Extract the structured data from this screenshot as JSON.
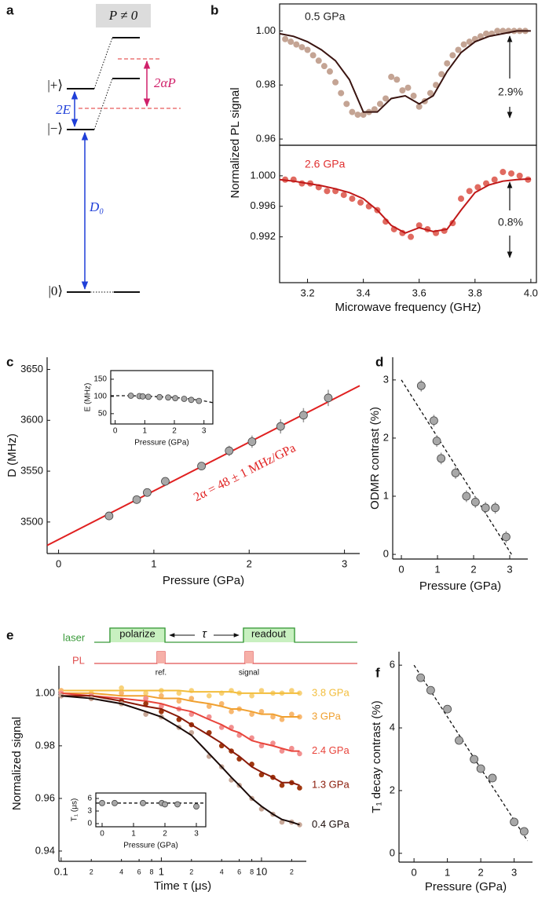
{
  "diagram": {
    "panel_label": "a",
    "condition": "P ≠ 0",
    "plus": "|+⟩",
    "minus": "|−⟩",
    "zero": "|0⟩",
    "splitting": "2E",
    "zero_field": "D₀",
    "shift": "2αP"
  },
  "chart_data": [
    {
      "type": "scatter",
      "panel_label": "b",
      "y_label": "Normalized PL signal",
      "xlim": [
        3.1,
        4.02
      ],
      "ylim": [
        0.9577,
        1.01
      ],
      "yticks": [
        0.96,
        0.98,
        {
          "value": 1,
          "label": "1.00"
        }
      ],
      "annotations": [
        {
          "text": "0.5 GPa",
          "color": "#222222"
        },
        {
          "text": "2.9%",
          "color": "#222222"
        }
      ],
      "series": [
        {
          "style": "markers",
          "color": "#c4a494",
          "x": [
            3.12,
            3.14,
            3.16,
            3.18,
            3.2,
            3.22,
            3.24,
            3.26,
            3.28,
            3.3,
            3.32,
            3.34,
            3.36,
            3.38,
            3.4,
            3.42,
            3.44,
            3.46,
            3.48,
            3.5,
            3.52,
            3.54,
            3.56,
            3.58,
            3.6,
            3.62,
            3.64,
            3.66,
            3.68,
            3.7,
            3.72,
            3.74,
            3.76,
            3.78,
            3.8,
            3.82,
            3.84,
            3.86,
            3.88,
            3.9,
            3.92,
            3.94,
            3.96,
            3.98
          ],
          "values": [
            0.997,
            0.996,
            0.995,
            0.994,
            0.993,
            0.991,
            0.989,
            0.987,
            0.985,
            0.981,
            0.977,
            0.973,
            0.97,
            0.969,
            0.969,
            0.97,
            0.971,
            0.973,
            0.975,
            0.983,
            0.982,
            0.978,
            0.979,
            0.976,
            0.972,
            0.974,
            0.977,
            0.98,
            0.984,
            0.988,
            0.991,
            0.993,
            0.995,
            0.996,
            0.997,
            0.998,
            0.999,
            0.999,
            1,
            1,
            1,
            1,
            1,
            1
          ]
        },
        {
          "style": "line",
          "color": "#3a1410",
          "x": [
            3.1,
            3.15,
            3.2,
            3.25,
            3.3,
            3.35,
            3.4,
            3.45,
            3.5,
            3.55,
            3.6,
            3.65,
            3.7,
            3.75,
            3.8,
            3.85,
            3.9,
            3.95,
            4.0
          ],
          "values": [
            0.999,
            0.998,
            0.996,
            0.993,
            0.989,
            0.982,
            0.97,
            0.97,
            0.975,
            0.976,
            0.973,
            0.976,
            0.985,
            0.992,
            0.996,
            0.998,
            0.999,
            1,
            1
          ]
        }
      ]
    },
    {
      "type": "scatter",
      "x_label": "Microwave frequency (GHz)",
      "xlim": [
        3.1,
        4.02
      ],
      "ylim": [
        0.986,
        1.004
      ],
      "xticks": [
        3.2,
        3.4,
        3.6,
        3.8,
        {
          "value": 4,
          "label": "4.0"
        }
      ],
      "yticks": [
        0.992,
        0.996,
        {
          "value": 1,
          "label": "1.000"
        }
      ],
      "annotations": [
        {
          "text": "2.6 GPa",
          "color": "#e03030"
        },
        {
          "text": "0.8%",
          "color": "#222222"
        }
      ],
      "series": [
        {
          "style": "markers",
          "color": "#e06a60",
          "x": [
            3.12,
            3.15,
            3.18,
            3.21,
            3.24,
            3.27,
            3.3,
            3.33,
            3.36,
            3.39,
            3.42,
            3.45,
            3.48,
            3.51,
            3.54,
            3.57,
            3.6,
            3.63,
            3.66,
            3.69,
            3.72,
            3.75,
            3.78,
            3.81,
            3.84,
            3.87,
            3.9,
            3.93,
            3.96,
            3.99
          ],
          "values": [
            0.9995,
            0.9995,
            0.999,
            0.999,
            0.9985,
            0.998,
            0.998,
            0.9975,
            0.997,
            0.9965,
            0.996,
            0.9955,
            0.994,
            0.993,
            0.9925,
            0.992,
            0.9935,
            0.993,
            0.9925,
            0.9928,
            0.9938,
            0.997,
            0.998,
            0.9985,
            0.999,
            0.9995,
            1.0005,
            1.0003,
            1,
            0.9995
          ]
        },
        {
          "style": "line",
          "color": "#c01818",
          "x": [
            3.1,
            3.15,
            3.2,
            3.25,
            3.3,
            3.35,
            3.4,
            3.45,
            3.5,
            3.55,
            3.6,
            3.65,
            3.7,
            3.75,
            3.8,
            3.85,
            3.9,
            3.95,
            4.0
          ],
          "values": [
            0.9995,
            0.9993,
            0.999,
            0.9987,
            0.9983,
            0.9978,
            0.997,
            0.9955,
            0.9935,
            0.9925,
            0.9932,
            0.9927,
            0.993,
            0.9955,
            0.9978,
            0.9988,
            0.9993,
            0.9995,
            0.9996
          ]
        }
      ]
    },
    {
      "type": "scatter",
      "panel_label": "c",
      "x_label": "Pressure (GPa)",
      "y_label": "D (MHz)",
      "xlim": [
        -0.12,
        3.16
      ],
      "ylim": [
        3469,
        3662
      ],
      "xticks": [
        0,
        1,
        2,
        3
      ],
      "yticks": [
        3500,
        3550,
        3600,
        3650
      ],
      "annotations": [
        {
          "text": "2α = 48 ± 1 MHz/GPa",
          "color": "#e02020"
        }
      ],
      "series": [
        {
          "style": "line",
          "color": "#e02020",
          "x": [
            -0.12,
            3.16
          ],
          "values": [
            3477,
            3634
          ]
        },
        {
          "style": "markers",
          "color": "#a8a8a8",
          "x": [
            0.53,
            0.82,
            0.93,
            1.12,
            1.5,
            1.79,
            2.03,
            2.33,
            2.57,
            2.83
          ],
          "values": [
            3506,
            3522,
            3529,
            3540,
            3555,
            3570,
            3579,
            3594,
            3605,
            3622
          ],
          "errors": [
            4,
            4,
            4,
            4,
            4,
            5,
            6,
            7,
            7,
            8
          ]
        }
      ]
    },
    {
      "type": "scatter",
      "x_label": "Pressure (GPa)",
      "y_label": "E (MHz)",
      "xlim": [
        -0.15,
        3.3
      ],
      "ylim": [
        20,
        175
      ],
      "xticks": [
        0,
        1,
        2,
        3
      ],
      "yticks": [
        50,
        100,
        150
      ],
      "series": [
        {
          "style": "dashed",
          "color": "#111111",
          "x": [
            -0.15,
            0.5,
            1,
            1.5,
            2,
            2.5,
            3,
            3.3
          ],
          "values": [
            102,
            102,
            101,
            99,
            97,
            93,
            87,
            82
          ]
        },
        {
          "style": "markers",
          "color": "#a8a8a8",
          "x": [
            0.53,
            0.82,
            0.93,
            1.12,
            1.5,
            1.79,
            2.03,
            2.33,
            2.57,
            2.83
          ],
          "values": [
            102,
            101,
            100,
            99,
            98,
            97,
            95,
            93,
            90,
            87
          ]
        }
      ]
    },
    {
      "type": "scatter",
      "panel_label": "d",
      "x_label": "Pressure (GPa)",
      "y_label": "ODMR contrast (%)",
      "xlim": [
        -0.24,
        3.5
      ],
      "ylim": [
        -0.08,
        3.39
      ],
      "xticks": [
        0,
        1,
        2,
        3
      ],
      "yticks": [
        0,
        1,
        2,
        3
      ],
      "series": [
        {
          "style": "dashed",
          "color": "#111111",
          "x": [
            0,
            3.05
          ],
          "values": [
            3,
            0
          ]
        },
        {
          "style": "markers",
          "color": "#a8a8a8",
          "x": [
            0.55,
            0.9,
            0.98,
            1.1,
            1.5,
            1.8,
            2.05,
            2.33,
            2.6,
            2.9
          ],
          "values": [
            2.9,
            2.3,
            1.95,
            1.65,
            1.4,
            1,
            0.9,
            0.8,
            0.8,
            0.3
          ],
          "errors": [
            0.1,
            0.1,
            0.1,
            0.1,
            0.1,
            0.1,
            0.1,
            0.1,
            0.1,
            0.1
          ]
        }
      ]
    },
    {
      "type": "scatter",
      "panel_label": "e",
      "xscale": "log",
      "x_label": "Time τ (μs)",
      "y_label": "Normalized signal",
      "xlim": [
        0.095,
        28
      ],
      "ylim": [
        0.9361,
        1.0104
      ],
      "xticks": [
        0.1,
        {
          "value": 0.2,
          "label": "2"
        },
        {
          "value": 0.4,
          "label": "4"
        },
        {
          "value": 0.6,
          "label": "6"
        },
        {
          "value": 0.8,
          "label": "8"
        },
        1,
        {
          "value": 2,
          "label": "2"
        },
        {
          "value": 4,
          "label": "4"
        },
        {
          "value": 6,
          "label": "6"
        },
        {
          "value": 8,
          "label": "8"
        },
        10,
        {
          "value": 20,
          "label": "2"
        }
      ],
      "yticks": [
        0.94,
        0.96,
        0.98,
        {
          "value": 1,
          "label": "1.00"
        }
      ],
      "sequence": {
        "laser": "laser",
        "polarize": "polarize",
        "tau": "τ",
        "readout": "readout",
        "pl": "PL",
        "ref": "ref.",
        "signal": "signal"
      },
      "x": [
        0.1,
        0.2,
        0.4,
        0.7,
        1,
        1.5,
        2,
        3,
        4,
        5,
        6,
        8,
        10,
        13,
        16,
        20,
        24
      ],
      "series": [
        {
          "name": "3.8 GPa",
          "color": "#f2bd3c",
          "point_color": "#f8d27a",
          "values": [
            1.001,
            1,
            1.002,
            1,
            1.001,
            1,
            1.001,
            0.999,
            1,
            1.001,
            1,
            0.999,
            1.001,
            1,
            1,
            1.001,
            1
          ],
          "fit": [
            1.001,
            1.001,
            1.001,
            1.001,
            1.001,
            1.001,
            1.0005,
            1.0005,
            1.0005,
            1.0005,
            1,
            1,
            1,
            1,
            1,
            1,
            1
          ]
        },
        {
          "name": "3 GPa",
          "color": "#f0a030",
          "point_color": "#f8b870",
          "values": [
            1.001,
            0.999,
            1,
            0.998,
            0.999,
            0.997,
            0.998,
            0.995,
            0.996,
            0.993,
            0.994,
            0.992,
            0.993,
            0.991,
            0.99,
            0.992,
            0.991
          ],
          "fit": [
            1,
            1,
            0.999,
            0.999,
            0.998,
            0.998,
            0.997,
            0.996,
            0.995,
            0.994,
            0.994,
            0.993,
            0.992,
            0.992,
            0.991,
            0.991,
            0.991
          ]
        },
        {
          "name": "2.4 GPa",
          "color": "#e8453c",
          "point_color": "#f29090",
          "values": [
            1,
            0.999,
            0.997,
            0.998,
            0.995,
            0.994,
            0.992,
            0.991,
            0.987,
            0.987,
            0.984,
            0.983,
            0.98,
            0.981,
            0.978,
            0.979,
            0.977
          ],
          "fit": [
            1,
            0.999,
            0.998,
            0.997,
            0.996,
            0.994,
            0.993,
            0.99,
            0.988,
            0.986,
            0.985,
            0.982,
            0.981,
            0.98,
            0.979,
            0.978,
            0.978
          ]
        },
        {
          "name": "1.3 GPa",
          "color": "#8a1a08",
          "point_color": "#a03810",
          "values": [
            0.999,
            0.998,
            0.997,
            0.996,
            0.993,
            0.99,
            0.988,
            0.985,
            0.98,
            0.978,
            0.975,
            0.973,
            0.969,
            0.968,
            0.965,
            0.966,
            0.964
          ],
          "fit": [
            0.999,
            0.999,
            0.997,
            0.995,
            0.994,
            0.991,
            0.988,
            0.984,
            0.981,
            0.978,
            0.976,
            0.972,
            0.97,
            0.968,
            0.966,
            0.966,
            0.965
          ]
        },
        {
          "name": "0.4 GPa",
          "color": "#1a0a08",
          "point_color": "#c8a898",
          "values": [
            0.999,
            0.998,
            0.996,
            0.992,
            0.991,
            0.987,
            0.985,
            0.976,
            0.972,
            0.967,
            0.965,
            0.96,
            0.956,
            0.954,
            0.951,
            0.951,
            0.95
          ],
          "fit": [
            0.999,
            0.998,
            0.996,
            0.993,
            0.991,
            0.987,
            0.984,
            0.977,
            0.972,
            0.968,
            0.965,
            0.96,
            0.957,
            0.954,
            0.952,
            0.951,
            0.95
          ]
        }
      ]
    },
    {
      "type": "scatter",
      "x_label": "Pressure (GPa)",
      "y_label": "T₁ (μs)",
      "xlim": [
        -0.2,
        3.3
      ],
      "ylim": [
        -0.75,
        7.3
      ],
      "xticks": [
        0,
        1,
        2,
        3
      ],
      "yticks": [
        0,
        3,
        6
      ],
      "series": [
        {
          "style": "dashed",
          "color": "#111111",
          "x": [
            -0.2,
            3.3
          ],
          "values": [
            4.9,
            4.9
          ]
        },
        {
          "style": "markers",
          "color": "#a8a8a8",
          "x": [
            0,
            0.4,
            1.3,
            1.9,
            2,
            2.4,
            3
          ],
          "values": [
            4.9,
            4.9,
            4.9,
            4.9,
            4.6,
            4.6,
            4.1
          ],
          "errors": [
            0.15,
            0.15,
            0.15,
            0.2,
            0.2,
            0.2,
            0.5
          ]
        }
      ]
    },
    {
      "type": "scatter",
      "panel_label": "f",
      "x_label": "Pressure (GPa)",
      "y_label": "T₁ decay contrast (%)",
      "xlim": [
        -0.45,
        3.55
      ],
      "ylim": [
        -0.28,
        6.43
      ],
      "xticks": [
        0,
        1,
        2,
        3
      ],
      "yticks": [
        0,
        2,
        4,
        6
      ],
      "series": [
        {
          "style": "dashed",
          "color": "#111111",
          "x": [
            0,
            3.4
          ],
          "values": [
            6,
            0.4
          ]
        },
        {
          "style": "markers",
          "color": "#a8a8a8",
          "x": [
            0.2,
            0.5,
            1,
            1.35,
            1.8,
            2,
            2.35,
            3,
            3.3
          ],
          "values": [
            5.6,
            5.2,
            4.6,
            3.6,
            3,
            2.7,
            2.4,
            1,
            0.7
          ],
          "errors": [
            0.1,
            0.1,
            0.1,
            0.1,
            0.1,
            0.1,
            0.1,
            0.1,
            0.1
          ]
        }
      ]
    }
  ]
}
